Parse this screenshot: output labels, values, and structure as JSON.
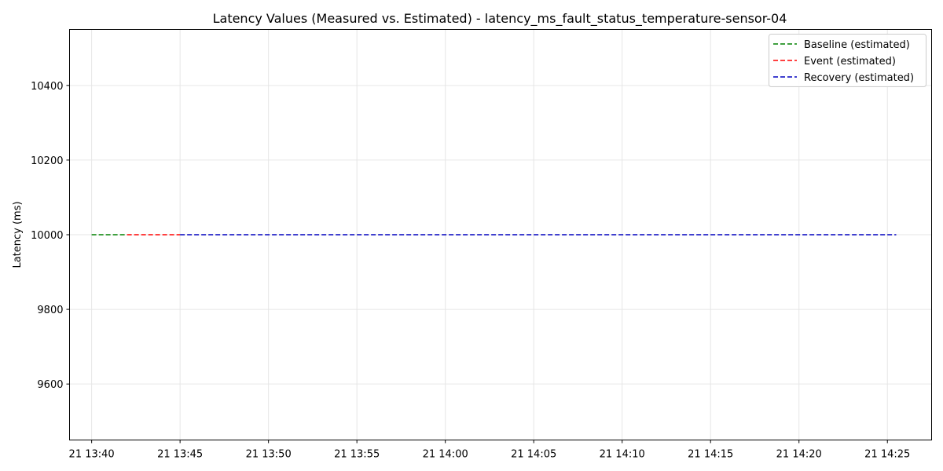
{
  "chart_data": {
    "type": "line",
    "title": "Latency Values (Measured vs. Estimated) - latency_ms_fault_status_temperature-sensor-04",
    "xlabel": "",
    "ylabel": "Latency (ms)",
    "ylim": [
      9450,
      10550
    ],
    "xlim": [
      "21 13:38:45",
      "21 14:27:30"
    ],
    "x_ticks": [
      "21 13:40",
      "21 13:45",
      "21 13:50",
      "21 13:55",
      "21 14:00",
      "21 14:05",
      "21 14:10",
      "21 14:15",
      "21 14:20",
      "21 14:25"
    ],
    "y_ticks": [
      9600,
      9800,
      10000,
      10200,
      10400
    ],
    "grid": true,
    "legend_position": "top-right",
    "series": [
      {
        "name": "Baseline (estimated)",
        "color": "#008000",
        "style": "dashed",
        "x": [
          "21 13:40",
          "21 13:42"
        ],
        "y": [
          10000,
          10000
        ]
      },
      {
        "name": "Event (estimated)",
        "color": "#ff0000",
        "style": "dashed",
        "x": [
          "21 13:42",
          "21 13:45"
        ],
        "y": [
          10000,
          10000
        ]
      },
      {
        "name": "Recovery (estimated)",
        "color": "#0000bf",
        "style": "dashed",
        "x": [
          "21 13:45",
          "21 14:25:30"
        ],
        "y": [
          10000,
          10000
        ]
      }
    ]
  }
}
